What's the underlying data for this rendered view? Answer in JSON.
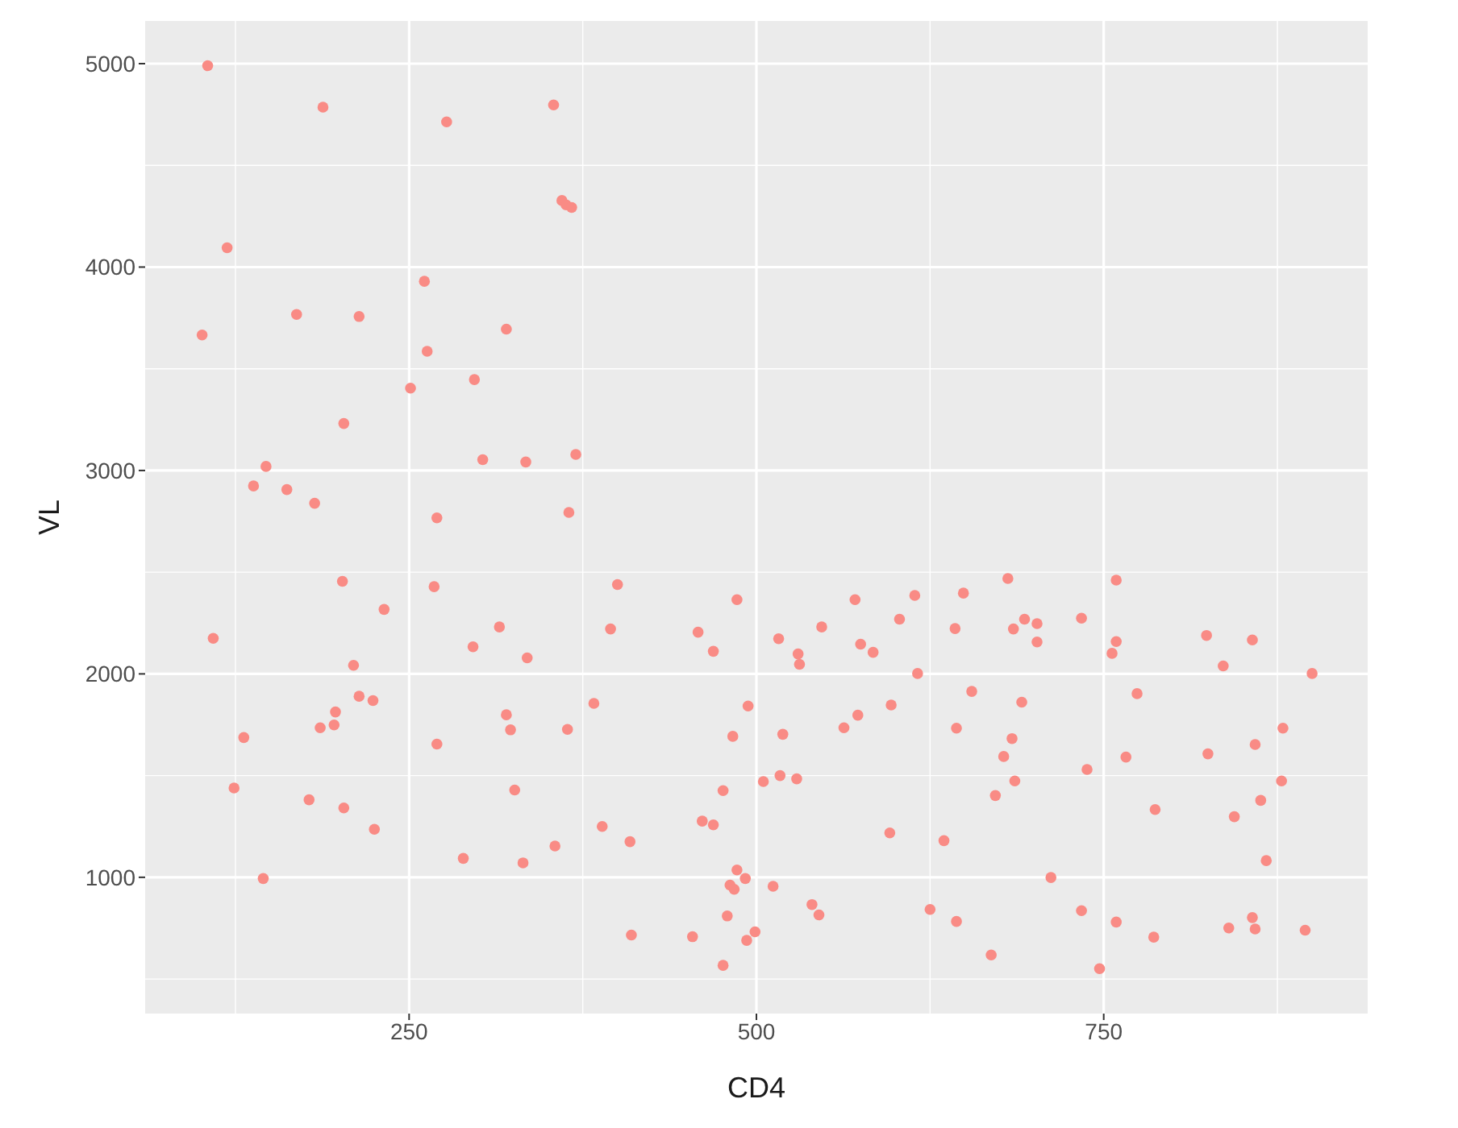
{
  "chart_data": {
    "type": "scatter",
    "xlabel": "CD4",
    "ylabel": "VL",
    "xlim": [
      60,
      940
    ],
    "ylim": [
      330,
      5210
    ],
    "xticks": [
      250,
      500,
      750
    ],
    "yticks": [
      1000,
      2000,
      3000,
      4000,
      5000
    ],
    "grid": true,
    "marker": "circle",
    "series": [
      {
        "color": "#f98b85",
        "x": [
          105,
          188,
          277,
          119,
          261,
          169,
          214,
          101,
          320,
          263,
          251,
          297,
          203,
          147,
          303,
          334,
          138,
          162,
          182,
          354,
          360,
          363,
          367,
          370,
          365,
          270,
          202,
          268,
          232,
          109,
          315,
          296,
          335,
          210,
          214,
          224,
          197,
          186,
          196,
          131,
          320,
          323,
          270,
          124,
          178,
          203,
          225,
          326,
          289,
          332,
          145,
          400,
          486,
          571,
          614,
          603,
          547,
          395,
          458,
          516,
          575,
          584,
          469,
          530,
          531,
          616,
          383,
          494,
          597,
          573,
          563,
          364,
          483,
          519,
          476,
          505,
          517,
          529,
          461,
          469,
          389,
          409,
          355,
          596,
          486,
          481,
          484,
          492,
          512,
          540,
          545,
          625,
          479,
          410,
          454,
          499,
          493,
          476,
          681,
          759,
          649,
          693,
          702,
          643,
          685,
          734,
          702,
          759,
          756,
          824,
          857,
          836,
          900,
          655,
          691,
          774,
          644,
          684,
          678,
          686,
          672,
          738,
          766,
          825,
          859,
          879,
          878,
          863,
          844,
          787,
          635,
          867,
          712,
          644,
          734,
          759,
          786,
          840,
          857,
          859,
          895,
          669,
          747
        ],
        "values": [
          4990,
          4786,
          4714,
          4095,
          3930,
          3767,
          3757,
          3666,
          3695,
          3586,
          3405,
          3447,
          3231,
          3020,
          3053,
          3042,
          2924,
          2906,
          2839,
          4797,
          4327,
          4306,
          4293,
          3079,
          2794,
          2767,
          2455,
          2429,
          2317,
          2175,
          2231,
          2133,
          2079,
          2042,
          1890,
          1869,
          1813,
          1735,
          1749,
          1687,
          1799,
          1725,
          1655,
          1439,
          1381,
          1341,
          1236,
          1429,
          1093,
          1071,
          994,
          2439,
          2365,
          2365,
          2386,
          2269,
          2231,
          2221,
          2205,
          2173,
          2146,
          2106,
          2111,
          2098,
          2047,
          2002,
          1855,
          1842,
          1847,
          1797,
          1735,
          1727,
          1693,
          1703,
          1426,
          1471,
          1500,
          1484,
          1276,
          1258,
          1250,
          1175,
          1154,
          1218,
          1036,
          962,
          941,
          994,
          956,
          866,
          815,
          842,
          810,
          716,
          708,
          732,
          690,
          567,
          2469,
          2461,
          2397,
          2269,
          2247,
          2223,
          2221,
          2274,
          2157,
          2159,
          2101,
          2189,
          2167,
          2039,
          2002,
          1914,
          1861,
          1903,
          1733,
          1682,
          1594,
          1474,
          1402,
          1530,
          1591,
          1607,
          1653,
          1733,
          1474,
          1378,
          1298,
          1333,
          1180,
          1082,
          999,
          783,
          836,
          780,
          706,
          751,
          802,
          746,
          740,
          618,
          551
        ]
      }
    ]
  }
}
